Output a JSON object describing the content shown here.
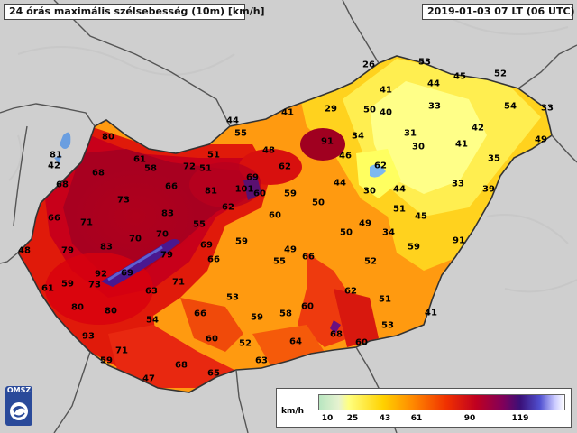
{
  "header": {
    "title": "24 órás maximális szélsebesség (10m) [km/h]",
    "datetime": "2019-01-03 07 LT (06 UTC)"
  },
  "logo": {
    "text": "OMSZ"
  },
  "legend": {
    "unit": "km/h",
    "ticks": [
      "10",
      "25",
      "43",
      "61",
      "90",
      "119"
    ],
    "colors": [
      "#b8e6c0",
      "#ffff80",
      "#ffd200",
      "#ff8a00",
      "#f03000",
      "#c00020",
      "#80005a",
      "#3a1078",
      "#c8c8ff",
      "#ffffff"
    ]
  },
  "stations": [
    "26",
    "53",
    "41",
    "44",
    "45",
    "52",
    "41",
    "29",
    "50",
    "40",
    "33",
    "54",
    "33",
    "44",
    "55",
    "91",
    "34",
    "31",
    "42",
    "49",
    "80",
    "51",
    "48",
    "46",
    "30",
    "41",
    "81",
    "61",
    "58",
    "72",
    "51",
    "62",
    "62",
    "35",
    "42",
    "68",
    "69",
    "68",
    "66",
    "101",
    "60",
    "44",
    "30",
    "44",
    "33",
    "39",
    "81",
    "59",
    "50",
    "73",
    "66",
    "71",
    "83",
    "62",
    "60",
    "51",
    "45",
    "70",
    "55",
    "49",
    "50",
    "34",
    "91",
    "70",
    "59",
    "79",
    "83",
    "69",
    "49",
    "59",
    "48",
    "79",
    "55",
    "66",
    "52",
    "66",
    "92",
    "69",
    "61",
    "59",
    "73",
    "71",
    "53",
    "63",
    "62",
    "51",
    "80",
    "80",
    "54",
    "66",
    "59",
    "58",
    "60",
    "41",
    "93",
    "60",
    "52",
    "53",
    "68",
    "60",
    "64",
    "71",
    "59",
    "63",
    "68",
    "47",
    "65"
  ]
}
